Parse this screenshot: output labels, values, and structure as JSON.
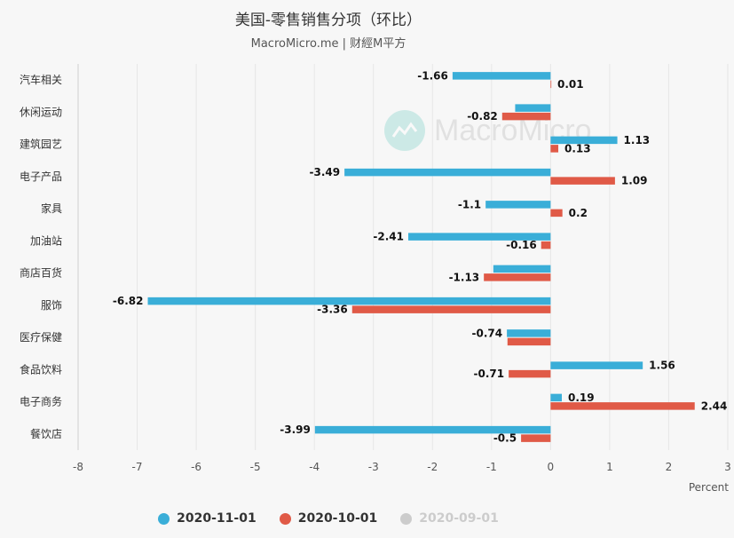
{
  "header": {
    "title": "美国-零售销售分项（环比）",
    "subtitle": "MacroMicro.me | 财經M平方"
  },
  "watermark": {
    "text": "MacroMicro",
    "icon": "macromicro-logo-icon"
  },
  "legend": [
    {
      "label": "2020-11-01",
      "color": "#3aaed8",
      "active": true
    },
    {
      "label": "2020-10-01",
      "color": "#e05a47",
      "active": true
    },
    {
      "label": "2020-09-01",
      "color": "#cccccc",
      "active": false
    }
  ],
  "chart_data": {
    "type": "bar",
    "orientation": "horizontal",
    "categories": [
      "汽车相关",
      "休闲运动",
      "建筑园艺",
      "电子产品",
      "家具",
      "加油站",
      "商店百货",
      "服饰",
      "医疗保健",
      "食品饮料",
      "电子商务",
      "餐饮店"
    ],
    "series": [
      {
        "name": "2020-11-01",
        "color": "#3aaed8",
        "values": [
          -1.66,
          -0.6,
          1.13,
          -3.49,
          -1.1,
          -2.41,
          -0.97,
          -6.82,
          -0.74,
          1.56,
          0.19,
          -3.99
        ],
        "labels": [
          "-1.66",
          "",
          "1.13",
          "-3.49",
          "-1.1",
          "-2.41",
          "",
          "-6.82",
          "-0.74",
          "1.56",
          "0.19",
          "-3.99"
        ]
      },
      {
        "name": "2020-10-01",
        "color": "#e05a47",
        "values": [
          0.01,
          -0.82,
          0.13,
          1.09,
          0.2,
          -0.16,
          -1.13,
          -3.36,
          -0.73,
          -0.71,
          2.44,
          -0.5
        ],
        "labels": [
          "0.01",
          "-0.82",
          "0.13",
          "1.09",
          "0.2",
          "-0.16",
          "-1.13",
          "-3.36",
          "",
          "-0.71",
          "2.44",
          "-0.5"
        ]
      }
    ],
    "xlim": [
      -8,
      3
    ],
    "xticks": [
      -8,
      -7,
      -6,
      -5,
      -4,
      -3,
      -2,
      -1,
      0,
      1,
      2,
      3
    ],
    "xlabel": "Percent",
    "ylabel": "",
    "grid": true,
    "legend_position": "bottom"
  }
}
